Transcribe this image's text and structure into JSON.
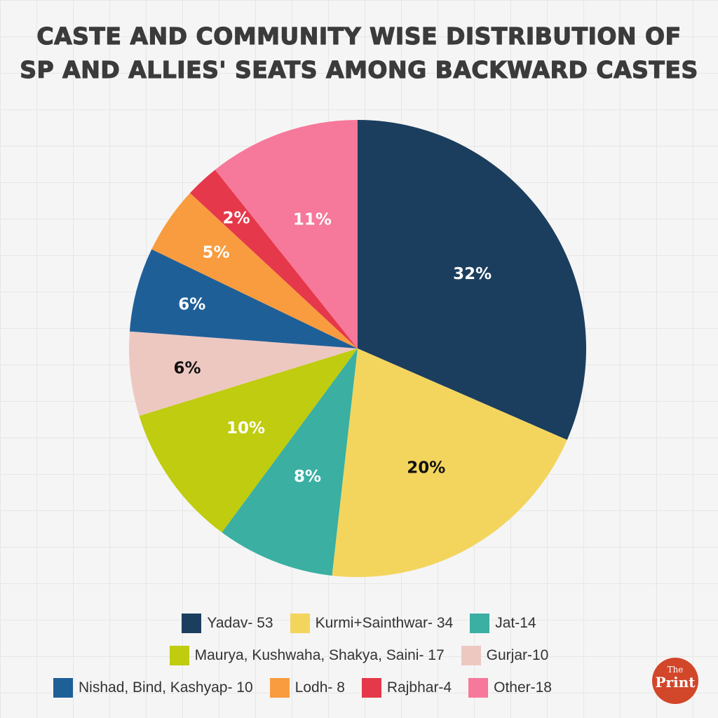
{
  "chart_data": {
    "type": "pie",
    "title_lines": [
      "CASTE AND COMMUNITY WISE DISTRIBUTION OF",
      "SP AND ALLIES' SEATS AMONG BACKWARD CASTES"
    ],
    "slices": [
      {
        "legend": "Yadav- 53",
        "value": 53,
        "label": "32%",
        "color": "#1b3e5e",
        "label_color": "#ffffff"
      },
      {
        "legend": "Kurmi+Sainthwar- 34",
        "value": 34,
        "label": "20%",
        "color": "#f3d55d",
        "label_color": "#111111"
      },
      {
        "legend": "Jat-14",
        "value": 14,
        "label": "8%",
        "color": "#3aafa2",
        "label_color": "#ffffff"
      },
      {
        "legend": "Maurya, Kushwaha, Shakya, Saini- 17",
        "value": 17,
        "label": "10%",
        "color": "#bfcc0f",
        "label_color": "#ffffff"
      },
      {
        "legend": "Gurjar-10",
        "value": 10,
        "label": "6%",
        "color": "#edc8c1",
        "label_color": "#111111"
      },
      {
        "legend": "Nishad, Bind, Kashyap- 10",
        "value": 10,
        "label": "6%",
        "color": "#1f5f98",
        "label_color": "#ffffff"
      },
      {
        "legend": "Lodh- 8",
        "value": 8,
        "label": "5%",
        "color": "#f89c3f",
        "label_color": "#ffffff"
      },
      {
        "legend": "Rajbhar-4",
        "value": 4,
        "label": "2%",
        "color": "#e5384a",
        "label_color": "#ffffff"
      },
      {
        "legend": "Other-18",
        "value": 18,
        "label": "11%",
        "color": "#f6789a",
        "label_color": "#ffffff"
      }
    ],
    "start": "12 o'clock",
    "direction": "clockwise",
    "legend_placement": "bottom",
    "grid": false
  },
  "logo": {
    "line1": "The",
    "line2": "Print"
  }
}
